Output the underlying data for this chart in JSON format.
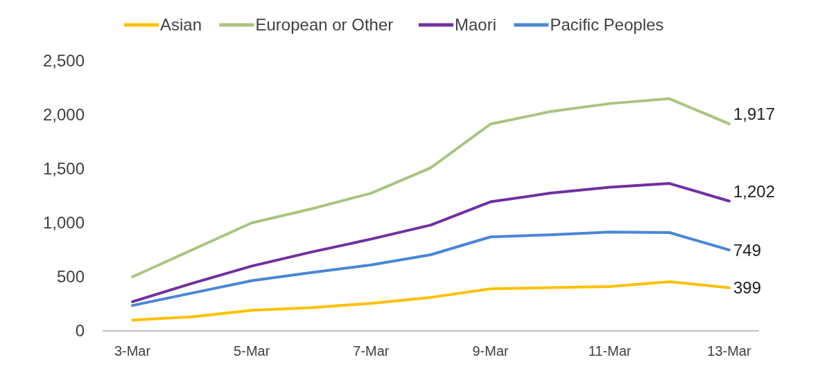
{
  "chart_data": {
    "type": "line",
    "categories": [
      "3-Mar",
      null,
      "5-Mar",
      null,
      "7-Mar",
      null,
      "9-Mar",
      null,
      "11-Mar",
      null,
      "13-Mar"
    ],
    "series": [
      {
        "name": "Asian",
        "color": "#ffc000",
        "values": [
          100,
          130,
          190,
          215,
          255,
          310,
          390,
          400,
          410,
          455,
          399
        ],
        "value_labels": [
          null,
          null,
          null,
          null,
          null,
          null,
          null,
          null,
          null,
          null,
          "399"
        ]
      },
      {
        "name": "European or Other",
        "color": "#a9c47f",
        "values": [
          500,
          750,
          1000,
          1130,
          1275,
          1510,
          1915,
          2030,
          2105,
          2150,
          1917
        ],
        "value_labels": [
          null,
          null,
          null,
          null,
          null,
          null,
          null,
          null,
          null,
          null,
          "1,917"
        ]
      },
      {
        "name": "Maori",
        "color": "#7030a0",
        "values": [
          270,
          440,
          600,
          730,
          850,
          980,
          1195,
          1275,
          1330,
          1365,
          1202
        ],
        "value_labels": [
          null,
          null,
          null,
          null,
          null,
          null,
          null,
          null,
          null,
          null,
          "1,202"
        ]
      },
      {
        "name": "Pacific Peoples",
        "color": "#4a86d8",
        "values": [
          235,
          350,
          465,
          540,
          610,
          705,
          870,
          890,
          915,
          910,
          749
        ],
        "value_labels": [
          null,
          null,
          null,
          null,
          null,
          null,
          null,
          null,
          null,
          null,
          "749"
        ]
      }
    ],
    "ylim": [
      0,
      2500
    ],
    "yticks": [
      0,
      {
        "value": 500,
        "label": "500"
      },
      {
        "value": 1000,
        "label": "1,000"
      },
      {
        "value": 1500,
        "label": "1,500"
      },
      {
        "value": 2000,
        "label": "2,000"
      },
      {
        "value": 2500,
        "label": "2,500"
      }
    ],
    "legend": "top",
    "grid": false,
    "marker": "none",
    "line_style": "solid"
  }
}
